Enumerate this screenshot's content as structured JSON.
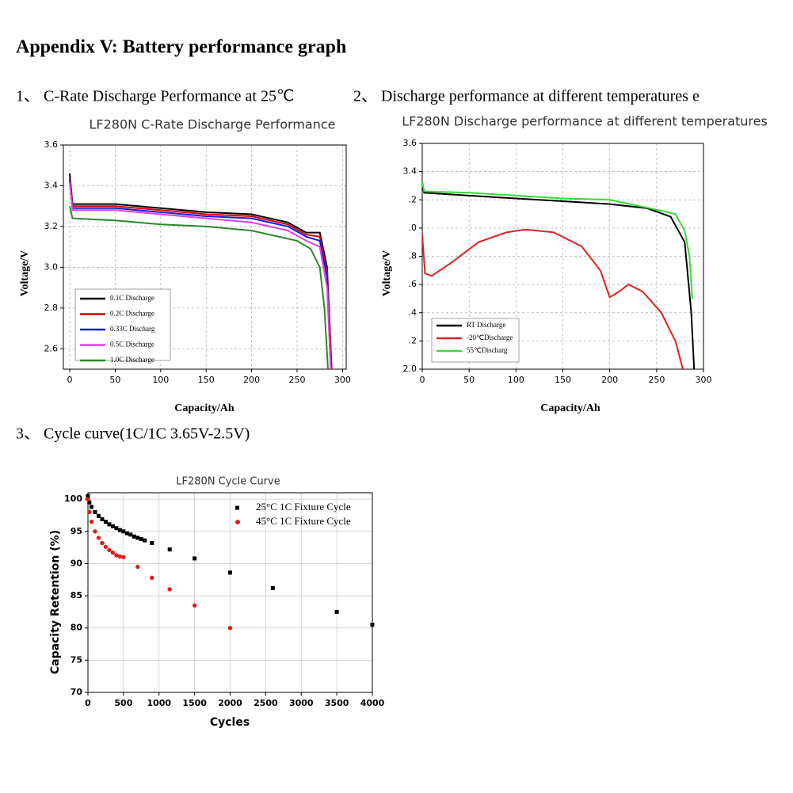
{
  "title": "Appendix V:  Battery performance graph",
  "headings": [
    "1、 C-Rate Discharge Performance at 25℃",
    "2、 Discharge performance at different temperatures e",
    "3、 Cycle curve(1C/1C 3.65V-2.5V)"
  ],
  "chart_data": [
    {
      "type": "line",
      "title": "LF280N C-Rate Discharge Performance",
      "x_label": "Capacity/Ah",
      "y_label": "Voltage/V",
      "xlim": [
        -7,
        304
      ],
      "ylim": [
        2.5,
        3.6
      ],
      "xticks": [
        0,
        50,
        100,
        150,
        200,
        250,
        300
      ],
      "yticks": [
        2.6,
        2.8,
        {
          "value": 3,
          "label": "3.0"
        },
        3.2,
        3.4,
        3.6
      ],
      "grid": true,
      "series": [
        {
          "name": "0.1C   Discharge",
          "color": "#000000",
          "x": [
            0,
            3,
            50,
            100,
            150,
            200,
            240,
            260,
            275,
            283,
            288
          ],
          "values": [
            3.46,
            3.31,
            3.31,
            3.29,
            3.27,
            3.26,
            3.22,
            3.17,
            3.17,
            3.0,
            2.5
          ]
        },
        {
          "name": "0.2C   Discharge",
          "color": "#d40000",
          "x": [
            0,
            3,
            50,
            100,
            150,
            200,
            240,
            260,
            275,
            283,
            288
          ],
          "values": [
            3.44,
            3.3,
            3.3,
            3.28,
            3.26,
            3.25,
            3.21,
            3.16,
            3.15,
            2.98,
            2.5
          ]
        },
        {
          "name": "0.33C   Discharg",
          "color": "#1a1adc",
          "x": [
            0,
            3,
            50,
            100,
            150,
            200,
            240,
            260,
            275,
            283,
            287
          ],
          "values": [
            3.43,
            3.29,
            3.29,
            3.27,
            3.25,
            3.24,
            3.2,
            3.15,
            3.13,
            2.95,
            2.5
          ]
        },
        {
          "name": "0.5C   Discharge",
          "color": "#e040e0",
          "x": [
            0,
            3,
            50,
            100,
            150,
            200,
            240,
            260,
            275,
            283,
            287
          ],
          "values": [
            3.42,
            3.28,
            3.28,
            3.26,
            3.24,
            3.22,
            3.18,
            3.13,
            3.1,
            2.9,
            2.5
          ]
        },
        {
          "name": "1.0C   Discharge",
          "color": "#2a8a2a",
          "x": [
            0,
            3,
            50,
            100,
            150,
            200,
            250,
            265,
            275,
            280,
            284
          ],
          "values": [
            3.3,
            3.24,
            3.23,
            3.21,
            3.2,
            3.18,
            3.13,
            3.09,
            3.0,
            2.8,
            2.5
          ]
        }
      ]
    },
    {
      "type": "line",
      "title": "LF280N Discharge performance at different temperatures",
      "x_label": "Capacity/Ah",
      "y_label": "Voltage/V",
      "xlim": [
        0,
        300
      ],
      "ylim": [
        2.0,
        3.6
      ],
      "xticks": [
        0,
        50,
        100,
        150,
        200,
        250,
        300
      ],
      "yticks": [
        {
          "value": 2.0,
          "label": "2.0"
        },
        {
          "value": 2.2,
          "label": ".2"
        },
        {
          "value": 2.4,
          "label": ".4"
        },
        {
          "value": 2.6,
          "label": ".6"
        },
        {
          "value": 2.8,
          "label": ".8"
        },
        {
          "value": 3.0,
          "label": ".0"
        },
        {
          "value": 3.2,
          "label": ".2"
        },
        3.4,
        3.6
      ],
      "grid": true,
      "series": [
        {
          "name": "RT Discharge",
          "color": "#000000",
          "x": [
            0,
            2,
            50,
            100,
            150,
            200,
            240,
            265,
            280,
            287,
            290
          ],
          "values": [
            3.3,
            3.25,
            3.23,
            3.21,
            3.19,
            3.17,
            3.14,
            3.08,
            2.9,
            2.4,
            2.0
          ]
        },
        {
          "name": "-20℃Discharge",
          "color": "#e02020",
          "x": [
            0,
            3,
            10,
            30,
            60,
            90,
            110,
            140,
            170,
            190,
            200,
            210,
            220,
            235,
            255,
            270,
            278
          ],
          "values": [
            2.95,
            2.68,
            2.66,
            2.75,
            2.9,
            2.97,
            2.99,
            2.97,
            2.87,
            2.7,
            2.51,
            2.55,
            2.6,
            2.55,
            2.4,
            2.2,
            2.0
          ]
        },
        {
          "name": "55℃Discharg",
          "color": "#33dd33",
          "x": [
            0,
            2,
            50,
            100,
            150,
            200,
            250,
            270,
            280,
            285,
            288
          ],
          "values": [
            3.33,
            3.26,
            3.25,
            3.23,
            3.21,
            3.2,
            3.13,
            3.1,
            2.98,
            2.8,
            2.5
          ]
        }
      ]
    },
    {
      "type": "scatter",
      "title": "LF280N Cycle Curve",
      "x_label": "Cycles",
      "y_label": "Capacity Retention (%)",
      "xlim": [
        0,
        4000
      ],
      "ylim": [
        70,
        101
      ],
      "xticks": [
        0,
        500,
        1000,
        1500,
        2000,
        2500,
        3000,
        3500,
        4000
      ],
      "yticks": [
        70,
        75,
        80,
        85,
        90,
        95,
        100
      ],
      "grid": true,
      "series": [
        {
          "name": "25°C 1C Fixture Cycle",
          "color": "#000000",
          "x": [
            0,
            20,
            50,
            100,
            150,
            200,
            250,
            300,
            350,
            400,
            450,
            500,
            550,
            600,
            650,
            700,
            750,
            800,
            900,
            1150,
            1500,
            2000,
            2600,
            3500,
            4000
          ],
          "values": [
            100.5,
            99.5,
            98.8,
            98,
            97.4,
            96.9,
            96.5,
            96.1,
            95.8,
            95.5,
            95.2,
            95,
            94.7,
            94.5,
            94.2,
            94,
            93.8,
            93.6,
            93.2,
            92.2,
            90.8,
            88.6,
            86.2,
            82.5,
            80.5
          ]
        },
        {
          "name": "45°C 1C Fixture Cycle",
          "color": "#e31a1a",
          "x": [
            0,
            20,
            50,
            100,
            150,
            200,
            250,
            300,
            350,
            400,
            450,
            500,
            700,
            900,
            1150,
            1500,
            2000
          ],
          "values": [
            100,
            98,
            96.5,
            95,
            94,
            93.2,
            92.6,
            92.1,
            91.7,
            91.3,
            91.1,
            91,
            89.5,
            87.8,
            86,
            83.5,
            80
          ]
        }
      ]
    }
  ]
}
